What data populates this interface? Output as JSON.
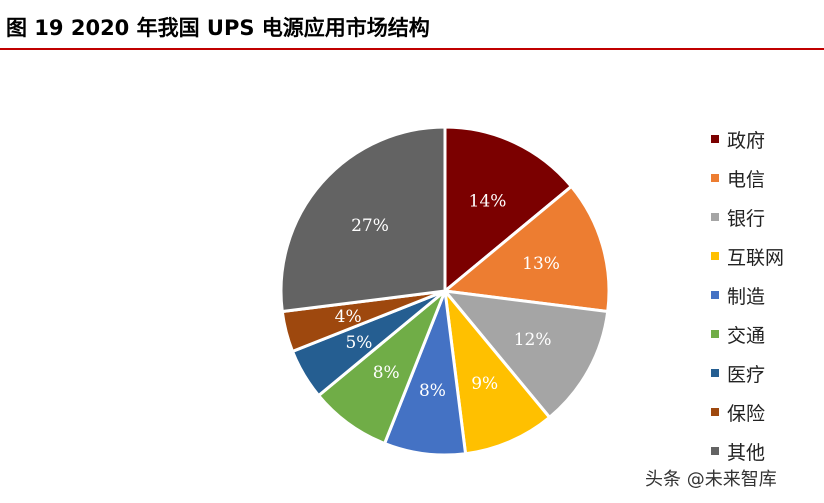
{
  "figure": {
    "title": "图 19 2020 年我国 UPS 电源应用市场结构"
  },
  "chart_data": {
    "type": "pie",
    "title": "",
    "categories": [
      "政府",
      "电信",
      "银行",
      "互联网",
      "制造",
      "交通",
      "医疗",
      "保险",
      "其他"
    ],
    "values": [
      14,
      13,
      12,
      9,
      8,
      8,
      5,
      4,
      27
    ],
    "labels": [
      "14%",
      "13%",
      "12%",
      "9%",
      "8%",
      "8%",
      "5%",
      "4%",
      "27%"
    ],
    "unit": "%",
    "colors": [
      "#7b0000",
      "#ed7d31",
      "#a5a5a5",
      "#ffc000",
      "#4472c4",
      "#70ad47",
      "#255e91",
      "#9e480e",
      "#636363"
    ],
    "legend_position": "right"
  },
  "watermark": "头条 @未来智库"
}
